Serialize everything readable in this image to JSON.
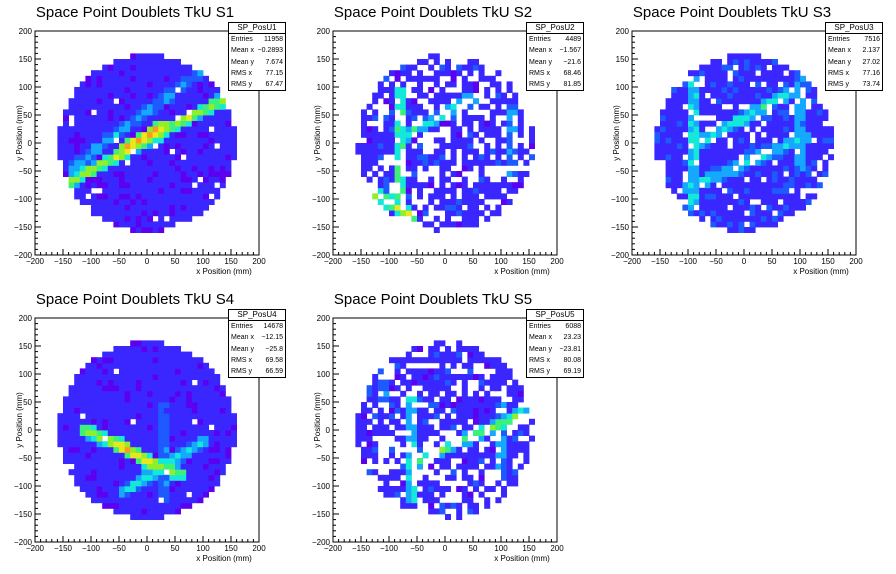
{
  "colors": {
    "palette": [
      "#5c00f0",
      "#3a27ff",
      "#1e5bff",
      "#14a8ff",
      "#14e8d8",
      "#3cf07a",
      "#8ff02a",
      "#e8e81a",
      "#ff9a1a",
      "#ff2a1a"
    ]
  },
  "chart_data": [
    {
      "type": "heatmap",
      "title": "Space Point Doublets TkU S1",
      "xlabel": "x Position (mm)",
      "ylabel": "y Position (mm)",
      "xlim": [
        -200,
        200
      ],
      "ylim": [
        -200,
        200
      ],
      "xticks": [
        "−200",
        "−150",
        "−100",
        "−50",
        "0",
        "50",
        "100",
        "150",
        "200"
      ],
      "yticks": [
        "200",
        "150",
        "100",
        "50",
        "0",
        "−50",
        "−100",
        "−150",
        "−200"
      ],
      "bin_width": 10,
      "stats": {
        "name": "SP_PosU1",
        "rows": [
          {
            "label": "Entries",
            "value": "11958"
          },
          {
            "label": "Mean x",
            "value": "−0.2893"
          },
          {
            "label": "Mean y",
            "value": "7.674"
          },
          {
            "label": "RMS x",
            "value": "77.15"
          },
          {
            "label": "RMS y",
            "value": "67.47"
          }
        ]
      },
      "background": {
        "level": 0.9,
        "holes": 0.03
      },
      "tracks": [
        {
          "x1": -150,
          "y1": -75,
          "x2": 140,
          "y2": 80,
          "level": 6.5
        },
        {
          "x1": -40,
          "y1": -10,
          "x2": 30,
          "y2": 30,
          "level": 8.5
        },
        {
          "x1": -130,
          "y1": -40,
          "x2": 100,
          "y2": 130,
          "level": 3.0
        }
      ]
    },
    {
      "type": "heatmap",
      "title": "Space Point Doublets TkU S2",
      "xlabel": "x Position (mm)",
      "ylabel": "y Position (mm)",
      "xlim": [
        -200,
        200
      ],
      "ylim": [
        -200,
        200
      ],
      "xticks": [
        "−200",
        "−150",
        "−100",
        "−50",
        "0",
        "50",
        "100",
        "150",
        "200"
      ],
      "yticks": [
        "200",
        "150",
        "100",
        "50",
        "0",
        "−50",
        "−100",
        "−150",
        "−200"
      ],
      "bin_width": 10,
      "stats": {
        "name": "SP_PosU2",
        "rows": [
          {
            "label": "Entries",
            "value": "4489"
          },
          {
            "label": "Mean x",
            "value": "−1.567"
          },
          {
            "label": "Mean y",
            "value": "−21.6"
          },
          {
            "label": "RMS x",
            "value": "68.46"
          },
          {
            "label": "RMS y",
            "value": "81.85"
          }
        ]
      },
      "background": {
        "level": 1.0,
        "holes": 0.38
      },
      "tracks": [
        {
          "x1": -80,
          "y1": -120,
          "x2": -80,
          "y2": 90,
          "level": 5.5
        },
        {
          "x1": -140,
          "y1": -80,
          "x2": -60,
          "y2": -130,
          "level": 7.0
        },
        {
          "x1": -80,
          "y1": 10,
          "x2": 50,
          "y2": 80,
          "level": 4.5
        },
        {
          "x1": 120,
          "y1": -60,
          "x2": 120,
          "y2": 60,
          "level": 3.0
        }
      ]
    },
    {
      "type": "heatmap",
      "title": "Space Point Doublets TkU S3",
      "xlabel": "x Position (mm)",
      "ylabel": "y Position (mm)",
      "xlim": [
        -200,
        200
      ],
      "ylim": [
        -200,
        200
      ],
      "xticks": [
        "−200",
        "−150",
        "−100",
        "−50",
        "0",
        "50",
        "100",
        "150",
        "200"
      ],
      "yticks": [
        "200",
        "150",
        "100",
        "50",
        "0",
        "−50",
        "−100",
        "−150",
        "−200"
      ],
      "bin_width": 10,
      "stats": {
        "name": "SP_PosU3",
        "rows": [
          {
            "label": "Entries",
            "value": "7516"
          },
          {
            "label": "Mean x",
            "value": "2.137"
          },
          {
            "label": "Mean y",
            "value": "27.02"
          },
          {
            "label": "RMS x",
            "value": "77.16"
          },
          {
            "label": "RMS y",
            "value": "73.74"
          }
        ]
      },
      "background": {
        "level": 1.1,
        "holes": 0.15
      },
      "tracks": [
        {
          "x1": -90,
          "y1": -110,
          "x2": -90,
          "y2": 110,
          "level": 4.5
        },
        {
          "x1": -80,
          "y1": 0,
          "x2": 80,
          "y2": 90,
          "level": 4.5
        },
        {
          "x1": -100,
          "y1": -80,
          "x2": 110,
          "y2": 10,
          "level": 4.0
        },
        {
          "x1": 100,
          "y1": -40,
          "x2": 100,
          "y2": 120,
          "level": 3.5
        }
      ]
    },
    {
      "type": "heatmap",
      "title": "Space Point Doublets TkU S4",
      "xlabel": "x Position (mm)",
      "ylabel": "y Position (mm)",
      "xlim": [
        -200,
        200
      ],
      "ylim": [
        -200,
        200
      ],
      "xticks": [
        "−200",
        "−150",
        "−100",
        "−50",
        "0",
        "50",
        "100",
        "150",
        "200"
      ],
      "yticks": [
        "200",
        "150",
        "100",
        "50",
        "0",
        "−50",
        "−100",
        "−150",
        "−200"
      ],
      "bin_width": 10,
      "stats": {
        "name": "SP_PosU4",
        "rows": [
          {
            "label": "Entries",
            "value": "14678"
          },
          {
            "label": "Mean x",
            "value": "−12.15"
          },
          {
            "label": "Mean y",
            "value": "−25.8"
          },
          {
            "label": "RMS x",
            "value": "69.58"
          },
          {
            "label": "RMS y",
            "value": "66.59"
          }
        ]
      },
      "background": {
        "level": 0.9,
        "holes": 0.02
      },
      "tracks": [
        {
          "x1": -110,
          "y1": 0,
          "x2": 60,
          "y2": -80,
          "level": 6.5
        },
        {
          "x1": -60,
          "y1": -20,
          "x2": 10,
          "y2": -60,
          "level": 8.0
        },
        {
          "x1": -40,
          "y1": -110,
          "x2": 100,
          "y2": -20,
          "level": 4.0
        },
        {
          "x1": 30,
          "y1": -120,
          "x2": 30,
          "y2": 40,
          "level": 2.5
        }
      ]
    },
    {
      "type": "heatmap",
      "title": "Space Point Doublets TkU S5",
      "xlabel": "x Position (mm)",
      "ylabel": "y Position (mm)",
      "xlim": [
        -200,
        200
      ],
      "ylim": [
        -200,
        200
      ],
      "xticks": [
        "−200",
        "−150",
        "−100",
        "−50",
        "0",
        "50",
        "100",
        "150",
        "200"
      ],
      "yticks": [
        "200",
        "150",
        "100",
        "50",
        "0",
        "−50",
        "−100",
        "−150",
        "−200"
      ],
      "bin_width": 10,
      "stats": {
        "name": "SP_PosU5",
        "rows": [
          {
            "label": "Entries",
            "value": "6088"
          },
          {
            "label": "Mean x",
            "value": "23.23"
          },
          {
            "label": "Mean y",
            "value": "−23.81"
          },
          {
            "label": "RMS x",
            "value": "80.08"
          },
          {
            "label": "RMS y",
            "value": "69.19"
          }
        ]
      },
      "background": {
        "level": 1.0,
        "holes": 0.35
      },
      "tracks": [
        {
          "x1": -60,
          "y1": -60,
          "x2": 140,
          "y2": 30,
          "level": 5.5
        },
        {
          "x1": -60,
          "y1": -120,
          "x2": -60,
          "y2": 60,
          "level": 4.5
        },
        {
          "x1": -110,
          "y1": 60,
          "x2": -110,
          "y2": 140,
          "level": 3.0
        },
        {
          "x1": 100,
          "y1": -80,
          "x2": 100,
          "y2": 40,
          "level": 3.0
        }
      ]
    }
  ]
}
